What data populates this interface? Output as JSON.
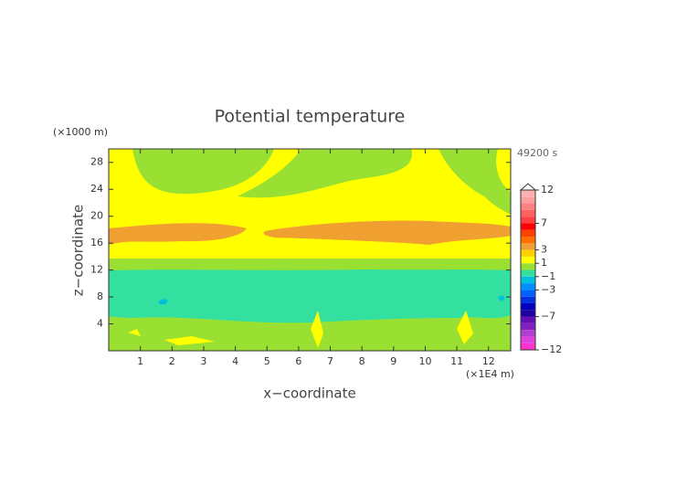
{
  "chart_data": {
    "type": "contour",
    "title": "Potential temperature",
    "x_label": "x−coordinate",
    "y_label": "z−coordinate",
    "x_unit": "(×1E4 m)",
    "y_unit": "(×1000 m)",
    "time_label": "49200 s",
    "xlim": [
      0,
      12.7
    ],
    "ylim": [
      0,
      30
    ],
    "xticks": [
      1,
      2,
      3,
      4,
      5,
      6,
      7,
      8,
      9,
      10,
      11,
      12
    ],
    "yticks": [
      4,
      8,
      12,
      16,
      20,
      24,
      28
    ],
    "colorbar": {
      "levels": [
        -12,
        -11,
        -10,
        -9,
        -8,
        -7,
        -6,
        -5,
        -4,
        -3,
        -2,
        -1,
        0,
        1,
        2,
        3,
        4,
        5,
        6,
        7,
        8,
        9,
        10,
        11,
        12
      ],
      "colors": [
        "#ff33cc",
        "#e040e0",
        "#b040d0",
        "#8020c0",
        "#6010b0",
        "#2000a0",
        "#0000c0",
        "#0030e0",
        "#0060ff",
        "#0090ff",
        "#00c0e0",
        "#33e0a0",
        "#99e033",
        "#ffff00",
        "#ffd000",
        "#f0a030",
        "#ff7000",
        "#ff4000",
        "#ff0000",
        "#ff4040",
        "#ff6060",
        "#ff8080",
        "#ffa0a0",
        "#ffb0b0"
      ],
      "ticks": [
        {
          "value": -12,
          "label": "−12"
        },
        {
          "value": -7,
          "label": "−7"
        },
        {
          "value": -3,
          "label": "−3"
        },
        {
          "value": -1,
          "label": "−1"
        },
        1,
        3,
        7,
        12
      ]
    }
  }
}
